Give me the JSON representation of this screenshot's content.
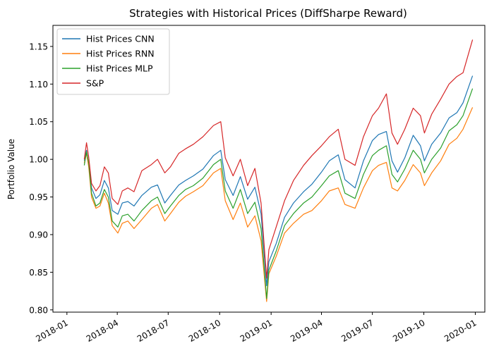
{
  "chart_data": {
    "type": "line",
    "title": "Strategies with Historical Prices (DiffSharpe Reward)",
    "xlabel": "",
    "ylabel": "Portfolio Value",
    "xlim": [
      "2017-12-07",
      "2020-01-18"
    ],
    "ylim": [
      0.797,
      1.178
    ],
    "x_ticks": [
      "2018-01",
      "2018-04",
      "2018-07",
      "2018-10",
      "2019-01",
      "2019-04",
      "2019-07",
      "2019-10",
      "2020-01"
    ],
    "y_ticks": [
      "0.80",
      "0.85",
      "0.90",
      "0.95",
      "1.00",
      "1.05",
      "1.10",
      "1.15"
    ],
    "grid": false,
    "legend_position": "top-left",
    "series": [
      {
        "name": "Hist Prices CNN",
        "color": "#1f77b4",
        "points": [
          [
            "2018-02-01",
            0.998
          ],
          [
            "2018-02-05",
            1.012
          ],
          [
            "2018-02-09",
            0.992
          ],
          [
            "2018-02-14",
            0.962
          ],
          [
            "2018-02-22",
            0.948
          ],
          [
            "2018-03-01",
            0.953
          ],
          [
            "2018-03-09",
            0.972
          ],
          [
            "2018-03-16",
            0.962
          ],
          [
            "2018-03-23",
            0.932
          ],
          [
            "2018-04-02",
            0.927
          ],
          [
            "2018-04-10",
            0.942
          ],
          [
            "2018-04-20",
            0.944
          ],
          [
            "2018-05-01",
            0.938
          ],
          [
            "2018-05-15",
            0.952
          ],
          [
            "2018-06-01",
            0.963
          ],
          [
            "2018-06-12",
            0.966
          ],
          [
            "2018-06-25",
            0.942
          ],
          [
            "2018-07-05",
            0.952
          ],
          [
            "2018-07-20",
            0.966
          ],
          [
            "2018-08-01",
            0.972
          ],
          [
            "2018-08-15",
            0.978
          ],
          [
            "2018-09-01",
            0.987
          ],
          [
            "2018-09-20",
            1.005
          ],
          [
            "2018-10-03",
            1.012
          ],
          [
            "2018-10-11",
            0.973
          ],
          [
            "2018-10-25",
            0.952
          ],
          [
            "2018-11-07",
            0.977
          ],
          [
            "2018-11-20",
            0.947
          ],
          [
            "2018-12-03",
            0.963
          ],
          [
            "2018-12-14",
            0.928
          ],
          [
            "2018-12-24",
            0.832
          ],
          [
            "2018-12-28",
            0.864
          ],
          [
            "2019-01-10",
            0.888
          ],
          [
            "2019-01-25",
            0.923
          ],
          [
            "2019-02-10",
            0.942
          ],
          [
            "2019-02-28",
            0.957
          ],
          [
            "2019-03-15",
            0.967
          ],
          [
            "2019-04-01",
            0.983
          ],
          [
            "2019-04-15",
            0.998
          ],
          [
            "2019-05-01",
            1.006
          ],
          [
            "2019-05-13",
            0.973
          ],
          [
            "2019-05-31",
            0.962
          ],
          [
            "2019-06-15",
            0.998
          ],
          [
            "2019-07-01",
            1.025
          ],
          [
            "2019-07-12",
            1.033
          ],
          [
            "2019-07-26",
            1.037
          ],
          [
            "2019-08-05",
            0.998
          ],
          [
            "2019-08-15",
            0.983
          ],
          [
            "2019-08-28",
            1.002
          ],
          [
            "2019-09-12",
            1.032
          ],
          [
            "2019-09-25",
            1.018
          ],
          [
            "2019-10-02",
            0.998
          ],
          [
            "2019-10-15",
            1.02
          ],
          [
            "2019-10-31",
            1.035
          ],
          [
            "2019-11-15",
            1.055
          ],
          [
            "2019-11-29",
            1.062
          ],
          [
            "2019-12-10",
            1.075
          ],
          [
            "2019-12-27",
            1.111
          ]
        ]
      },
      {
        "name": "Hist Prices RNN",
        "color": "#ff7f0e",
        "points": [
          [
            "2018-02-01",
            0.995
          ],
          [
            "2018-02-05",
            1.008
          ],
          [
            "2018-02-09",
            0.99
          ],
          [
            "2018-02-14",
            0.95
          ],
          [
            "2018-02-22",
            0.935
          ],
          [
            "2018-03-01",
            0.938
          ],
          [
            "2018-03-09",
            0.955
          ],
          [
            "2018-03-16",
            0.942
          ],
          [
            "2018-03-23",
            0.912
          ],
          [
            "2018-04-02",
            0.902
          ],
          [
            "2018-04-10",
            0.915
          ],
          [
            "2018-04-20",
            0.918
          ],
          [
            "2018-05-01",
            0.908
          ],
          [
            "2018-05-15",
            0.92
          ],
          [
            "2018-06-01",
            0.935
          ],
          [
            "2018-06-12",
            0.94
          ],
          [
            "2018-06-25",
            0.918
          ],
          [
            "2018-07-05",
            0.928
          ],
          [
            "2018-07-20",
            0.943
          ],
          [
            "2018-08-01",
            0.951
          ],
          [
            "2018-08-15",
            0.957
          ],
          [
            "2018-09-01",
            0.965
          ],
          [
            "2018-09-20",
            0.982
          ],
          [
            "2018-10-03",
            0.988
          ],
          [
            "2018-10-11",
            0.945
          ],
          [
            "2018-10-25",
            0.92
          ],
          [
            "2018-11-07",
            0.942
          ],
          [
            "2018-11-20",
            0.91
          ],
          [
            "2018-12-03",
            0.925
          ],
          [
            "2018-12-14",
            0.892
          ],
          [
            "2018-12-24",
            0.811
          ],
          [
            "2018-12-28",
            0.848
          ],
          [
            "2019-01-10",
            0.871
          ],
          [
            "2019-01-25",
            0.902
          ],
          [
            "2019-02-10",
            0.915
          ],
          [
            "2019-02-28",
            0.927
          ],
          [
            "2019-03-15",
            0.932
          ],
          [
            "2019-04-01",
            0.945
          ],
          [
            "2019-04-15",
            0.958
          ],
          [
            "2019-05-01",
            0.962
          ],
          [
            "2019-05-13",
            0.94
          ],
          [
            "2019-05-31",
            0.935
          ],
          [
            "2019-06-15",
            0.962
          ],
          [
            "2019-07-01",
            0.985
          ],
          [
            "2019-07-12",
            0.992
          ],
          [
            "2019-07-26",
            0.996
          ],
          [
            "2019-08-05",
            0.962
          ],
          [
            "2019-08-15",
            0.958
          ],
          [
            "2019-08-28",
            0.972
          ],
          [
            "2019-09-12",
            0.993
          ],
          [
            "2019-09-25",
            0.982
          ],
          [
            "2019-10-02",
            0.965
          ],
          [
            "2019-10-15",
            0.982
          ],
          [
            "2019-10-31",
            0.998
          ],
          [
            "2019-11-15",
            1.02
          ],
          [
            "2019-11-29",
            1.028
          ],
          [
            "2019-12-10",
            1.04
          ],
          [
            "2019-12-27",
            1.069
          ]
        ]
      },
      {
        "name": "Hist Prices MLP",
        "color": "#2ca02c",
        "points": [
          [
            "2018-02-01",
            0.992
          ],
          [
            "2018-02-05",
            1.01
          ],
          [
            "2018-02-09",
            0.995
          ],
          [
            "2018-02-14",
            0.955
          ],
          [
            "2018-02-22",
            0.938
          ],
          [
            "2018-03-01",
            0.942
          ],
          [
            "2018-03-09",
            0.96
          ],
          [
            "2018-03-16",
            0.95
          ],
          [
            "2018-03-23",
            0.918
          ],
          [
            "2018-04-02",
            0.91
          ],
          [
            "2018-04-10",
            0.925
          ],
          [
            "2018-04-20",
            0.927
          ],
          [
            "2018-05-01",
            0.918
          ],
          [
            "2018-05-15",
            0.932
          ],
          [
            "2018-06-01",
            0.945
          ],
          [
            "2018-06-12",
            0.95
          ],
          [
            "2018-06-25",
            0.928
          ],
          [
            "2018-07-05",
            0.938
          ],
          [
            "2018-07-20",
            0.952
          ],
          [
            "2018-08-01",
            0.96
          ],
          [
            "2018-08-15",
            0.965
          ],
          [
            "2018-09-01",
            0.975
          ],
          [
            "2018-09-20",
            0.993
          ],
          [
            "2018-10-03",
            1.0
          ],
          [
            "2018-10-11",
            0.958
          ],
          [
            "2018-10-25",
            0.935
          ],
          [
            "2018-11-07",
            0.96
          ],
          [
            "2018-11-20",
            0.928
          ],
          [
            "2018-12-03",
            0.943
          ],
          [
            "2018-12-14",
            0.908
          ],
          [
            "2018-12-24",
            0.815
          ],
          [
            "2018-12-28",
            0.853
          ],
          [
            "2019-01-10",
            0.878
          ],
          [
            "2019-01-25",
            0.912
          ],
          [
            "2019-02-10",
            0.928
          ],
          [
            "2019-02-28",
            0.942
          ],
          [
            "2019-03-15",
            0.95
          ],
          [
            "2019-04-01",
            0.965
          ],
          [
            "2019-04-15",
            0.978
          ],
          [
            "2019-05-01",
            0.985
          ],
          [
            "2019-05-13",
            0.955
          ],
          [
            "2019-05-31",
            0.948
          ],
          [
            "2019-06-15",
            0.98
          ],
          [
            "2019-07-01",
            1.005
          ],
          [
            "2019-07-12",
            1.012
          ],
          [
            "2019-07-26",
            1.018
          ],
          [
            "2019-08-05",
            0.98
          ],
          [
            "2019-08-15",
            0.97
          ],
          [
            "2019-08-28",
            0.987
          ],
          [
            "2019-09-12",
            1.012
          ],
          [
            "2019-09-25",
            1.0
          ],
          [
            "2019-10-02",
            0.982
          ],
          [
            "2019-10-15",
            1.0
          ],
          [
            "2019-10-31",
            1.015
          ],
          [
            "2019-11-15",
            1.038
          ],
          [
            "2019-11-29",
            1.046
          ],
          [
            "2019-12-10",
            1.058
          ],
          [
            "2019-12-27",
            1.094
          ]
        ]
      },
      {
        "name": "S&P",
        "color": "#d62728",
        "points": [
          [
            "2018-02-01",
            1.0
          ],
          [
            "2018-02-05",
            1.022
          ],
          [
            "2018-02-09",
            1.003
          ],
          [
            "2018-02-14",
            0.968
          ],
          [
            "2018-02-22",
            0.958
          ],
          [
            "2018-03-01",
            0.965
          ],
          [
            "2018-03-09",
            0.99
          ],
          [
            "2018-03-16",
            0.982
          ],
          [
            "2018-03-23",
            0.948
          ],
          [
            "2018-04-02",
            0.94
          ],
          [
            "2018-04-10",
            0.958
          ],
          [
            "2018-04-20",
            0.962
          ],
          [
            "2018-05-01",
            0.957
          ],
          [
            "2018-05-15",
            0.985
          ],
          [
            "2018-06-01",
            0.993
          ],
          [
            "2018-06-12",
            1.0
          ],
          [
            "2018-06-25",
            0.982
          ],
          [
            "2018-07-05",
            0.99
          ],
          [
            "2018-07-20",
            1.008
          ],
          [
            "2018-08-01",
            1.014
          ],
          [
            "2018-08-15",
            1.02
          ],
          [
            "2018-09-01",
            1.03
          ],
          [
            "2018-09-20",
            1.045
          ],
          [
            "2018-10-03",
            1.05
          ],
          [
            "2018-10-11",
            1.002
          ],
          [
            "2018-10-25",
            0.978
          ],
          [
            "2018-11-07",
            1.0
          ],
          [
            "2018-11-20",
            0.965
          ],
          [
            "2018-12-03",
            0.988
          ],
          [
            "2018-12-14",
            0.942
          ],
          [
            "2018-12-24",
            0.842
          ],
          [
            "2018-12-28",
            0.88
          ],
          [
            "2019-01-10",
            0.91
          ],
          [
            "2019-01-25",
            0.945
          ],
          [
            "2019-02-10",
            0.972
          ],
          [
            "2019-02-28",
            0.992
          ],
          [
            "2019-03-15",
            1.005
          ],
          [
            "2019-04-01",
            1.018
          ],
          [
            "2019-04-15",
            1.03
          ],
          [
            "2019-05-01",
            1.04
          ],
          [
            "2019-05-13",
            1.0
          ],
          [
            "2019-05-31",
            0.992
          ],
          [
            "2019-06-15",
            1.03
          ],
          [
            "2019-07-01",
            1.058
          ],
          [
            "2019-07-12",
            1.068
          ],
          [
            "2019-07-26",
            1.087
          ],
          [
            "2019-08-05",
            1.035
          ],
          [
            "2019-08-15",
            1.02
          ],
          [
            "2019-08-28",
            1.04
          ],
          [
            "2019-09-12",
            1.068
          ],
          [
            "2019-09-25",
            1.058
          ],
          [
            "2019-10-02",
            1.035
          ],
          [
            "2019-10-15",
            1.06
          ],
          [
            "2019-10-31",
            1.08
          ],
          [
            "2019-11-15",
            1.1
          ],
          [
            "2019-11-29",
            1.11
          ],
          [
            "2019-12-10",
            1.115
          ],
          [
            "2019-12-27",
            1.159
          ]
        ]
      }
    ]
  }
}
